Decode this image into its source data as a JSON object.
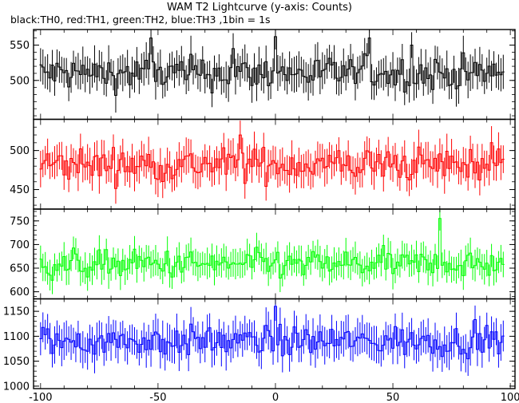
{
  "title": "WAM T2 Lightcurve (y-axis: Counts)",
  "subtitle": "black:TH0, red:TH1, green:TH2, blue:TH3 ,1bin = 1s",
  "chart_data": {
    "type": "line",
    "style": "step with error bars",
    "title": "WAM T2 Lightcurve (y-axis: Counts)",
    "subtitle": "black:TH0, red:TH1, green:TH2, blue:TH3 ,1bin = 1s",
    "xlabel": "",
    "ylabel": "Counts",
    "xlim": [
      -103,
      102
    ],
    "x_ticks": [
      -100,
      -50,
      0,
      50,
      100
    ],
    "bin_width": 1,
    "grid": false,
    "legend": "none",
    "panels": [
      {
        "series": "TH0",
        "color": "#000000",
        "ylim": [
          445,
          572
        ],
        "y_ticks": [
          500,
          550
        ],
        "mean": 510,
        "amplitude": 20,
        "error": 22,
        "peaks": [
          {
            "x": -53,
            "y": 560
          },
          {
            "x": -18,
            "y": 545
          },
          {
            "x": 0,
            "y": 562
          },
          {
            "x": 40,
            "y": 560
          },
          {
            "x": 58,
            "y": 550
          }
        ]
      },
      {
        "series": "TH1",
        "color": "#ff0000",
        "ylim": [
          425,
          540
        ],
        "y_ticks": [
          450,
          500
        ],
        "mean": 482,
        "amplitude": 18,
        "error": 20,
        "peaks": [
          {
            "x": -15,
            "y": 520
          },
          {
            "x": 92,
            "y": 510
          }
        ]
      },
      {
        "series": "TH2",
        "color": "#00ff00",
        "ylim": [
          585,
          775
        ],
        "y_ticks": [
          600,
          650,
          700,
          750
        ],
        "mean": 658,
        "amplitude": 25,
        "error": 28,
        "peaks": [
          {
            "x": 70,
            "y": 755
          }
        ]
      },
      {
        "series": "TH3",
        "color": "#0000ff",
        "ylim": [
          995,
          1175
        ],
        "y_ticks": [
          1000,
          1050,
          1100,
          1150
        ],
        "mean": 1090,
        "amplitude": 25,
        "error": 32,
        "peaks": [
          {
            "x": 0,
            "y": 1160
          }
        ]
      }
    ]
  }
}
